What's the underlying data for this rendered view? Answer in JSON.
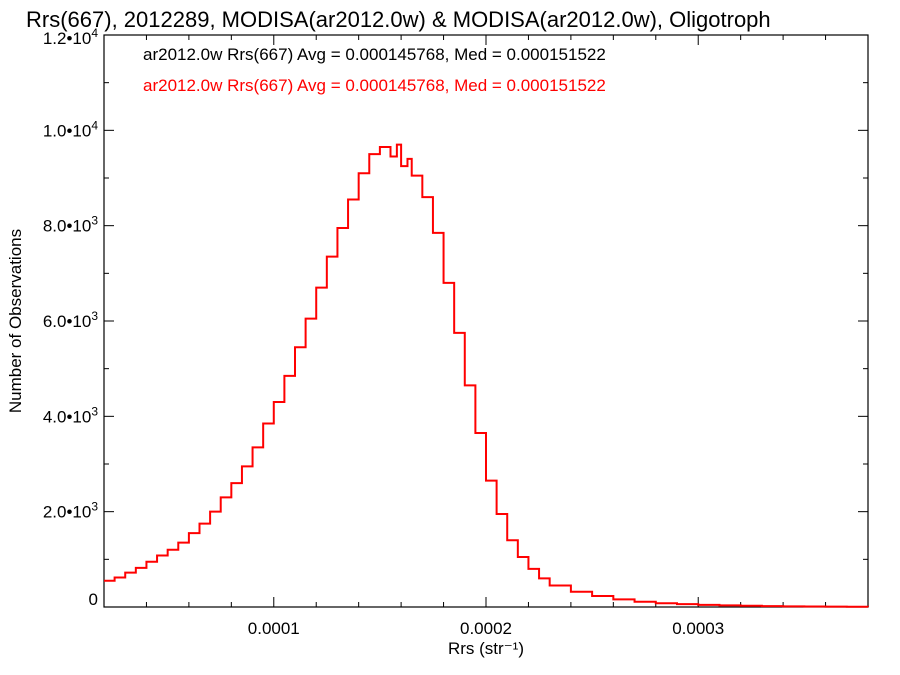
{
  "chart_data": {
    "type": "histogram",
    "title": "Rrs(667), 2012289, MODISA(ar2012.0w) & MODISA(ar2012.0w), Oligotroph",
    "xlabel": "Rrs (str⁻¹)",
    "ylabel": "Number of Observations",
    "xlim": [
      2e-05,
      0.00038
    ],
    "ylim": [
      0,
      12000
    ],
    "x_ticks": [
      {
        "value": 0.0001,
        "label": "0.0001"
      },
      {
        "value": 0.0002,
        "label": "0.0002"
      },
      {
        "value": 0.0003,
        "label": "0.0003"
      }
    ],
    "y_ticks": [
      {
        "value": 0,
        "mantissa": "0",
        "exponent": ""
      },
      {
        "value": 2000,
        "mantissa": "2.0•10",
        "exponent": "3"
      },
      {
        "value": 4000,
        "mantissa": "4.0•10",
        "exponent": "3"
      },
      {
        "value": 6000,
        "mantissa": "6.0•10",
        "exponent": "3"
      },
      {
        "value": 8000,
        "mantissa": "8.0•10",
        "exponent": "3"
      },
      {
        "value": 10000,
        "mantissa": "1.0•10",
        "exponent": "4"
      },
      {
        "value": 12000,
        "mantissa": "1.2•10",
        "exponent": "4"
      }
    ],
    "legend": [
      {
        "text": "ar2012.0w Rrs(667) Avg = 0.000145768, Med = 0.000151522",
        "color": "#000000"
      },
      {
        "text": "ar2012.0w Rrs(667) Avg = 0.000145768, Med = 0.000151522",
        "color": "#ff0000"
      }
    ],
    "series": [
      {
        "color": "#ff0000",
        "x": [
          2e-05,
          2.5e-05,
          3e-05,
          3.5e-05,
          4e-05,
          4.5e-05,
          5e-05,
          5.5e-05,
          6e-05,
          6.5e-05,
          7e-05,
          7.5e-05,
          8e-05,
          8.5e-05,
          9e-05,
          9.5e-05,
          0.0001,
          0.000105,
          0.00011,
          0.000115,
          0.00012,
          0.000125,
          0.00013,
          0.000135,
          0.00014,
          0.000145,
          0.00015,
          0.000155,
          0.000158,
          0.00016,
          0.000163,
          0.000165,
          0.00017,
          0.000175,
          0.00018,
          0.000185,
          0.00019,
          0.000195,
          0.0002,
          0.000205,
          0.00021,
          0.000215,
          0.00022,
          0.000225,
          0.00023,
          0.00024,
          0.00025,
          0.00026,
          0.00027,
          0.00028,
          0.00029,
          0.0003,
          0.00031,
          0.00032,
          0.00033,
          0.00034,
          0.00035,
          0.00036,
          0.00037,
          0.00038
        ],
        "y": [
          550,
          620,
          720,
          820,
          950,
          1080,
          1200,
          1350,
          1550,
          1750,
          2000,
          2300,
          2600,
          2950,
          3350,
          3850,
          4300,
          4850,
          5450,
          6050,
          6700,
          7350,
          7950,
          8550,
          9100,
          9500,
          9650,
          9450,
          9700,
          9250,
          9400,
          9050,
          8600,
          7850,
          6800,
          5750,
          4650,
          3650,
          2650,
          1950,
          1400,
          1050,
          800,
          600,
          450,
          320,
          230,
          160,
          110,
          80,
          60,
          45,
          35,
          25,
          18,
          12,
          10,
          8,
          6,
          5
        ]
      }
    ]
  }
}
